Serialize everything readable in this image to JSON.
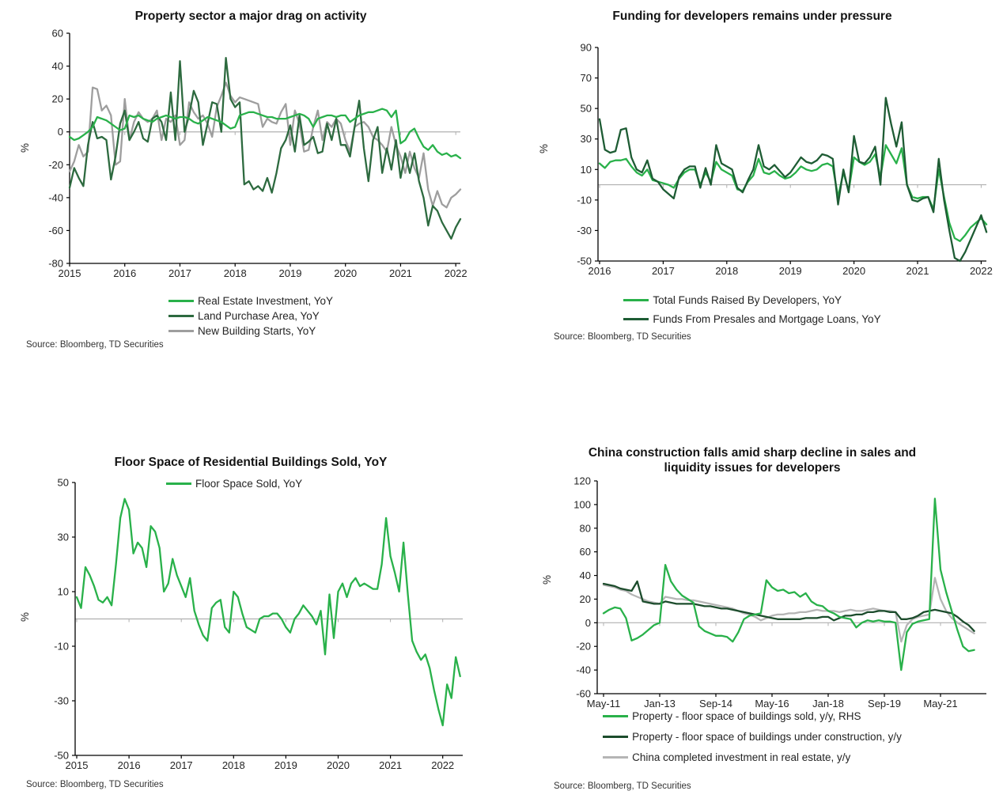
{
  "source_label": "Source: Bloomberg, TD Securities",
  "colors": {
    "bright_green": "#29b14a",
    "dark_green": "#2d6a3f",
    "forest_green": "#1e5c34",
    "deep_green": "#1c4c2c",
    "gray": "#9e9e9e",
    "light_gray": "#b5b5b5",
    "axis_black": "#000000",
    "zero_line_gray": "#b0b0b0",
    "text": "#141414"
  },
  "chart_data": [
    {
      "type": "line",
      "title": "Property sector a major drag on activity",
      "ylabel": "%",
      "ylim": [
        -80,
        60
      ],
      "yticks": [
        60,
        40,
        20,
        0,
        -20,
        -40,
        -60,
        -80
      ],
      "xticklabels": [
        "2015",
        "2016",
        "2017",
        "2018",
        "2019",
        "2020",
        "2021",
        "2022"
      ],
      "xtick_indices": [
        0,
        12,
        24,
        36,
        48,
        60,
        72,
        84
      ],
      "frequency": "monthly",
      "x_start": "2015-01",
      "x_end": "2022-02",
      "grid": "zero-line only",
      "legend_position": "bottom",
      "series": [
        {
          "name": "Real Estate Investment, YoY",
          "color": "#29b14a",
          "values": [
            -3,
            -5,
            -4,
            -2,
            0,
            3,
            9,
            8,
            7,
            5,
            3,
            1,
            2,
            10,
            9,
            10,
            8,
            7,
            6,
            8,
            9,
            10,
            9,
            8,
            9,
            9,
            8,
            6,
            5,
            7,
            9,
            8,
            7,
            6,
            4,
            2,
            3,
            10,
            11,
            12,
            12,
            11,
            10,
            9,
            9,
            8,
            8,
            8,
            9,
            10,
            11,
            10,
            8,
            3,
            8,
            9,
            10,
            10,
            9,
            10,
            10,
            6,
            8,
            10,
            11,
            12,
            12,
            13,
            14,
            13,
            9,
            13,
            -7,
            -5,
            0,
            2,
            -4,
            -9,
            -11,
            -8,
            -12,
            -14,
            -13,
            -15,
            -14,
            -16
          ]
        },
        {
          "name": "Land Purchase Area, YoY",
          "color": "#2d6a3f",
          "values": [
            -34,
            -22,
            -28,
            -33,
            -8,
            6,
            -4,
            -3,
            -5,
            -29,
            -15,
            5,
            13,
            -5,
            0,
            6,
            -4,
            -6,
            8,
            10,
            6,
            -5,
            24,
            -5,
            43,
            0,
            10,
            25,
            18,
            -8,
            5,
            18,
            17,
            0,
            45,
            20,
            15,
            18,
            -32,
            -30,
            -35,
            -33,
            -36,
            -28,
            -37,
            -25,
            -10,
            -5,
            4,
            -12,
            10,
            -8,
            -6,
            -3,
            -13,
            -12,
            5,
            -5,
            8,
            -8,
            -8,
            -15,
            3,
            19,
            -10,
            -30,
            -5,
            3,
            -25,
            -10,
            -23,
            -5,
            -28,
            -13,
            -25,
            -13,
            -30,
            -40,
            -57,
            -45,
            -48,
            -55,
            -60,
            -65,
            -58,
            -53
          ]
        },
        {
          "name": "New Building Starts, YoY",
          "color": "#9e9e9e",
          "values": [
            -24,
            -18,
            -8,
            -15,
            -12,
            27,
            26,
            13,
            16,
            10,
            -20,
            -18,
            20,
            -5,
            6,
            12,
            8,
            6,
            8,
            13,
            -5,
            8,
            6,
            10,
            -8,
            -5,
            18,
            12,
            8,
            10,
            5,
            -3,
            15,
            22,
            30,
            22,
            18,
            21,
            20,
            19,
            18,
            17,
            3,
            8,
            6,
            5,
            12,
            17,
            -8,
            13,
            5,
            -12,
            -11,
            3,
            13,
            -5,
            6,
            3,
            8,
            5,
            -5,
            -12,
            3,
            5,
            6,
            3,
            -3,
            -5,
            -8,
            -12,
            3,
            -8,
            -15,
            -25,
            -12,
            -22,
            -28,
            -13,
            -35,
            -45,
            -36,
            -44,
            -46,
            -40,
            -38,
            -35
          ]
        }
      ]
    },
    {
      "type": "line",
      "title": "Funding for developers remains under pressure",
      "ylabel": "%",
      "ylim": [
        -50,
        90
      ],
      "yticks": [
        90,
        70,
        50,
        30,
        10,
        -10,
        -30,
        -50
      ],
      "xticklabels": [
        "2016",
        "2017",
        "2018",
        "2019",
        "2020",
        "2021",
        "2022"
      ],
      "xtick_indices": [
        0,
        12,
        24,
        36,
        48,
        60,
        72
      ],
      "frequency": "monthly",
      "x_start": "2016-01",
      "x_end": "2022-02",
      "grid": "zero-line only",
      "legend_position": "bottom",
      "series": [
        {
          "name": "Total Funds Raised By Developers, YoY",
          "color": "#29b14a",
          "values": [
            14,
            11,
            15,
            16,
            16,
            17,
            12,
            8,
            6,
            10,
            3,
            2,
            1,
            0,
            -2,
            4,
            8,
            10,
            10,
            0,
            8,
            2,
            15,
            10,
            8,
            6,
            -3,
            -4,
            2,
            6,
            17,
            8,
            7,
            9,
            6,
            4,
            5,
            8,
            12,
            10,
            9,
            10,
            13,
            14,
            12,
            -8,
            8,
            -4,
            18,
            15,
            13,
            15,
            20,
            5,
            26,
            20,
            14,
            24,
            0,
            -8,
            -9,
            -8,
            -8,
            -16,
            10,
            -8,
            -25,
            -35,
            -37,
            -33,
            -28,
            -25,
            -22,
            -26
          ]
        },
        {
          "name": "Funds From Presales and Mortgage Loans, YoY",
          "color": "#1e5c34",
          "values": [
            43,
            23,
            21,
            22,
            36,
            37,
            18,
            10,
            8,
            16,
            4,
            2,
            -3,
            -6,
            -9,
            5,
            10,
            12,
            12,
            -2,
            11,
            0,
            26,
            14,
            12,
            10,
            -2,
            -5,
            3,
            10,
            26,
            12,
            10,
            13,
            9,
            5,
            8,
            13,
            18,
            15,
            14,
            16,
            20,
            19,
            17,
            -13,
            10,
            -5,
            32,
            15,
            14,
            18,
            25,
            0,
            57,
            40,
            25,
            41,
            0,
            -10,
            -11,
            -9,
            -8,
            -18,
            17,
            -10,
            -30,
            -48,
            -50,
            -44,
            -36,
            -28,
            -20,
            -31
          ]
        }
      ]
    },
    {
      "type": "line",
      "title": "Floor Space of Residential Buildings Sold, YoY",
      "ylabel": "%",
      "ylim": [
        -50,
        50
      ],
      "yticks": [
        50,
        30,
        10,
        -10,
        -30,
        -50
      ],
      "xticklabels": [
        "2015",
        "2016",
        "2017",
        "2018",
        "2019",
        "2020",
        "2021",
        "2022"
      ],
      "xtick_indices": [
        0,
        12,
        24,
        36,
        48,
        60,
        72,
        84
      ],
      "frequency": "monthly",
      "x_start": "2015-01",
      "x_end": "2022-05",
      "grid": "zero-line only",
      "legend_position": "top-inside",
      "series": [
        {
          "name": "Floor Space Sold, YoY",
          "color": "#29b14a",
          "values": [
            8,
            4,
            19,
            16,
            12,
            7,
            6,
            8,
            5,
            20,
            37,
            44,
            40,
            24,
            28,
            26,
            19,
            34,
            32,
            26,
            10,
            13,
            22,
            16,
            12,
            8,
            15,
            3,
            -2,
            -6,
            -8,
            4,
            6,
            7,
            -3,
            -5,
            10,
            8,
            2,
            -3,
            -4,
            -5,
            0,
            1,
            1,
            2,
            2,
            0,
            -3,
            -5,
            0,
            2,
            5,
            3,
            1,
            -2,
            3,
            -13,
            9,
            -7,
            10,
            13,
            8,
            13,
            15,
            12,
            13,
            12,
            11,
            11,
            20,
            37,
            23,
            17,
            10,
            28,
            9,
            -8,
            -12,
            -15,
            -13,
            -18,
            -26,
            -33,
            -39,
            -24,
            -29,
            -14,
            -21
          ]
        }
      ]
    },
    {
      "type": "line",
      "title": "China construction falls amid sharp decline in sales and liquidity issues for developers",
      "ylabel": "%",
      "ylim": [
        -60,
        120
      ],
      "yticks": [
        120,
        100,
        80,
        60,
        40,
        20,
        0,
        -20,
        -40,
        -60
      ],
      "xticklabels": [
        "May-11",
        "Jan-13",
        "Sep-14",
        "May-16",
        "Jan-18",
        "Sep-19",
        "May-21"
      ],
      "xtick_indices": [
        0,
        10,
        20,
        30,
        40,
        50,
        60
      ],
      "frequency": "bimonthly",
      "x_start": "2011-05",
      "x_end": "2022-05",
      "grid": "zero-line only",
      "legend_position": "bottom",
      "series": [
        {
          "name": "Property - floor space of buildings sold, y/y, RHS",
          "color": "#29b14a",
          "values": [
            8,
            11,
            13,
            12,
            4,
            -15,
            -13,
            -10,
            -6,
            -2,
            0,
            49,
            35,
            28,
            23,
            20,
            17,
            -3,
            -7,
            -9,
            -11,
            -11,
            -12,
            -16,
            -8,
            3,
            6,
            7,
            8,
            36,
            30,
            27,
            28,
            25,
            26,
            22,
            25,
            18,
            15,
            14,
            10,
            8,
            5,
            4,
            3,
            -4,
            0,
            2,
            1,
            2,
            1,
            1,
            0,
            -40,
            -8,
            -1,
            1,
            2,
            3,
            105,
            45,
            26,
            10,
            -6,
            -20,
            -24,
            -23
          ]
        },
        {
          "name": "Property - floor space of buildings under construction, y/y",
          "color": "#1c4c2c",
          "values": [
            33,
            32,
            31,
            29,
            28,
            27,
            35,
            18,
            17,
            16,
            16,
            18,
            17,
            16,
            16,
            16,
            16,
            15,
            14,
            14,
            13,
            12,
            12,
            11,
            10,
            9,
            8,
            7,
            6,
            5,
            4,
            3,
            3,
            3,
            3,
            3,
            4,
            4,
            4,
            5,
            5,
            2,
            4,
            6,
            6,
            7,
            7,
            9,
            9,
            10,
            10,
            9,
            9,
            3,
            3,
            4,
            6,
            9,
            10,
            11,
            10,
            9,
            8,
            5,
            1,
            -2,
            -7
          ]
        },
        {
          "name": "China completed investment in real estate, y/y",
          "color": "#b5b5b5",
          "values": [
            32,
            31,
            30,
            28,
            27,
            24,
            22,
            20,
            18,
            17,
            16,
            22,
            21,
            20,
            20,
            19,
            19,
            18,
            17,
            16,
            15,
            14,
            13,
            12,
            10,
            8,
            7,
            5,
            2,
            4,
            6,
            7,
            7,
            8,
            8,
            9,
            9,
            10,
            11,
            10,
            10,
            10,
            9,
            10,
            11,
            10,
            10,
            11,
            12,
            11,
            10,
            10,
            9,
            -16,
            -2,
            3,
            5,
            6,
            7,
            38,
            20,
            10,
            4,
            0,
            -3,
            -6,
            -9
          ]
        }
      ]
    }
  ]
}
